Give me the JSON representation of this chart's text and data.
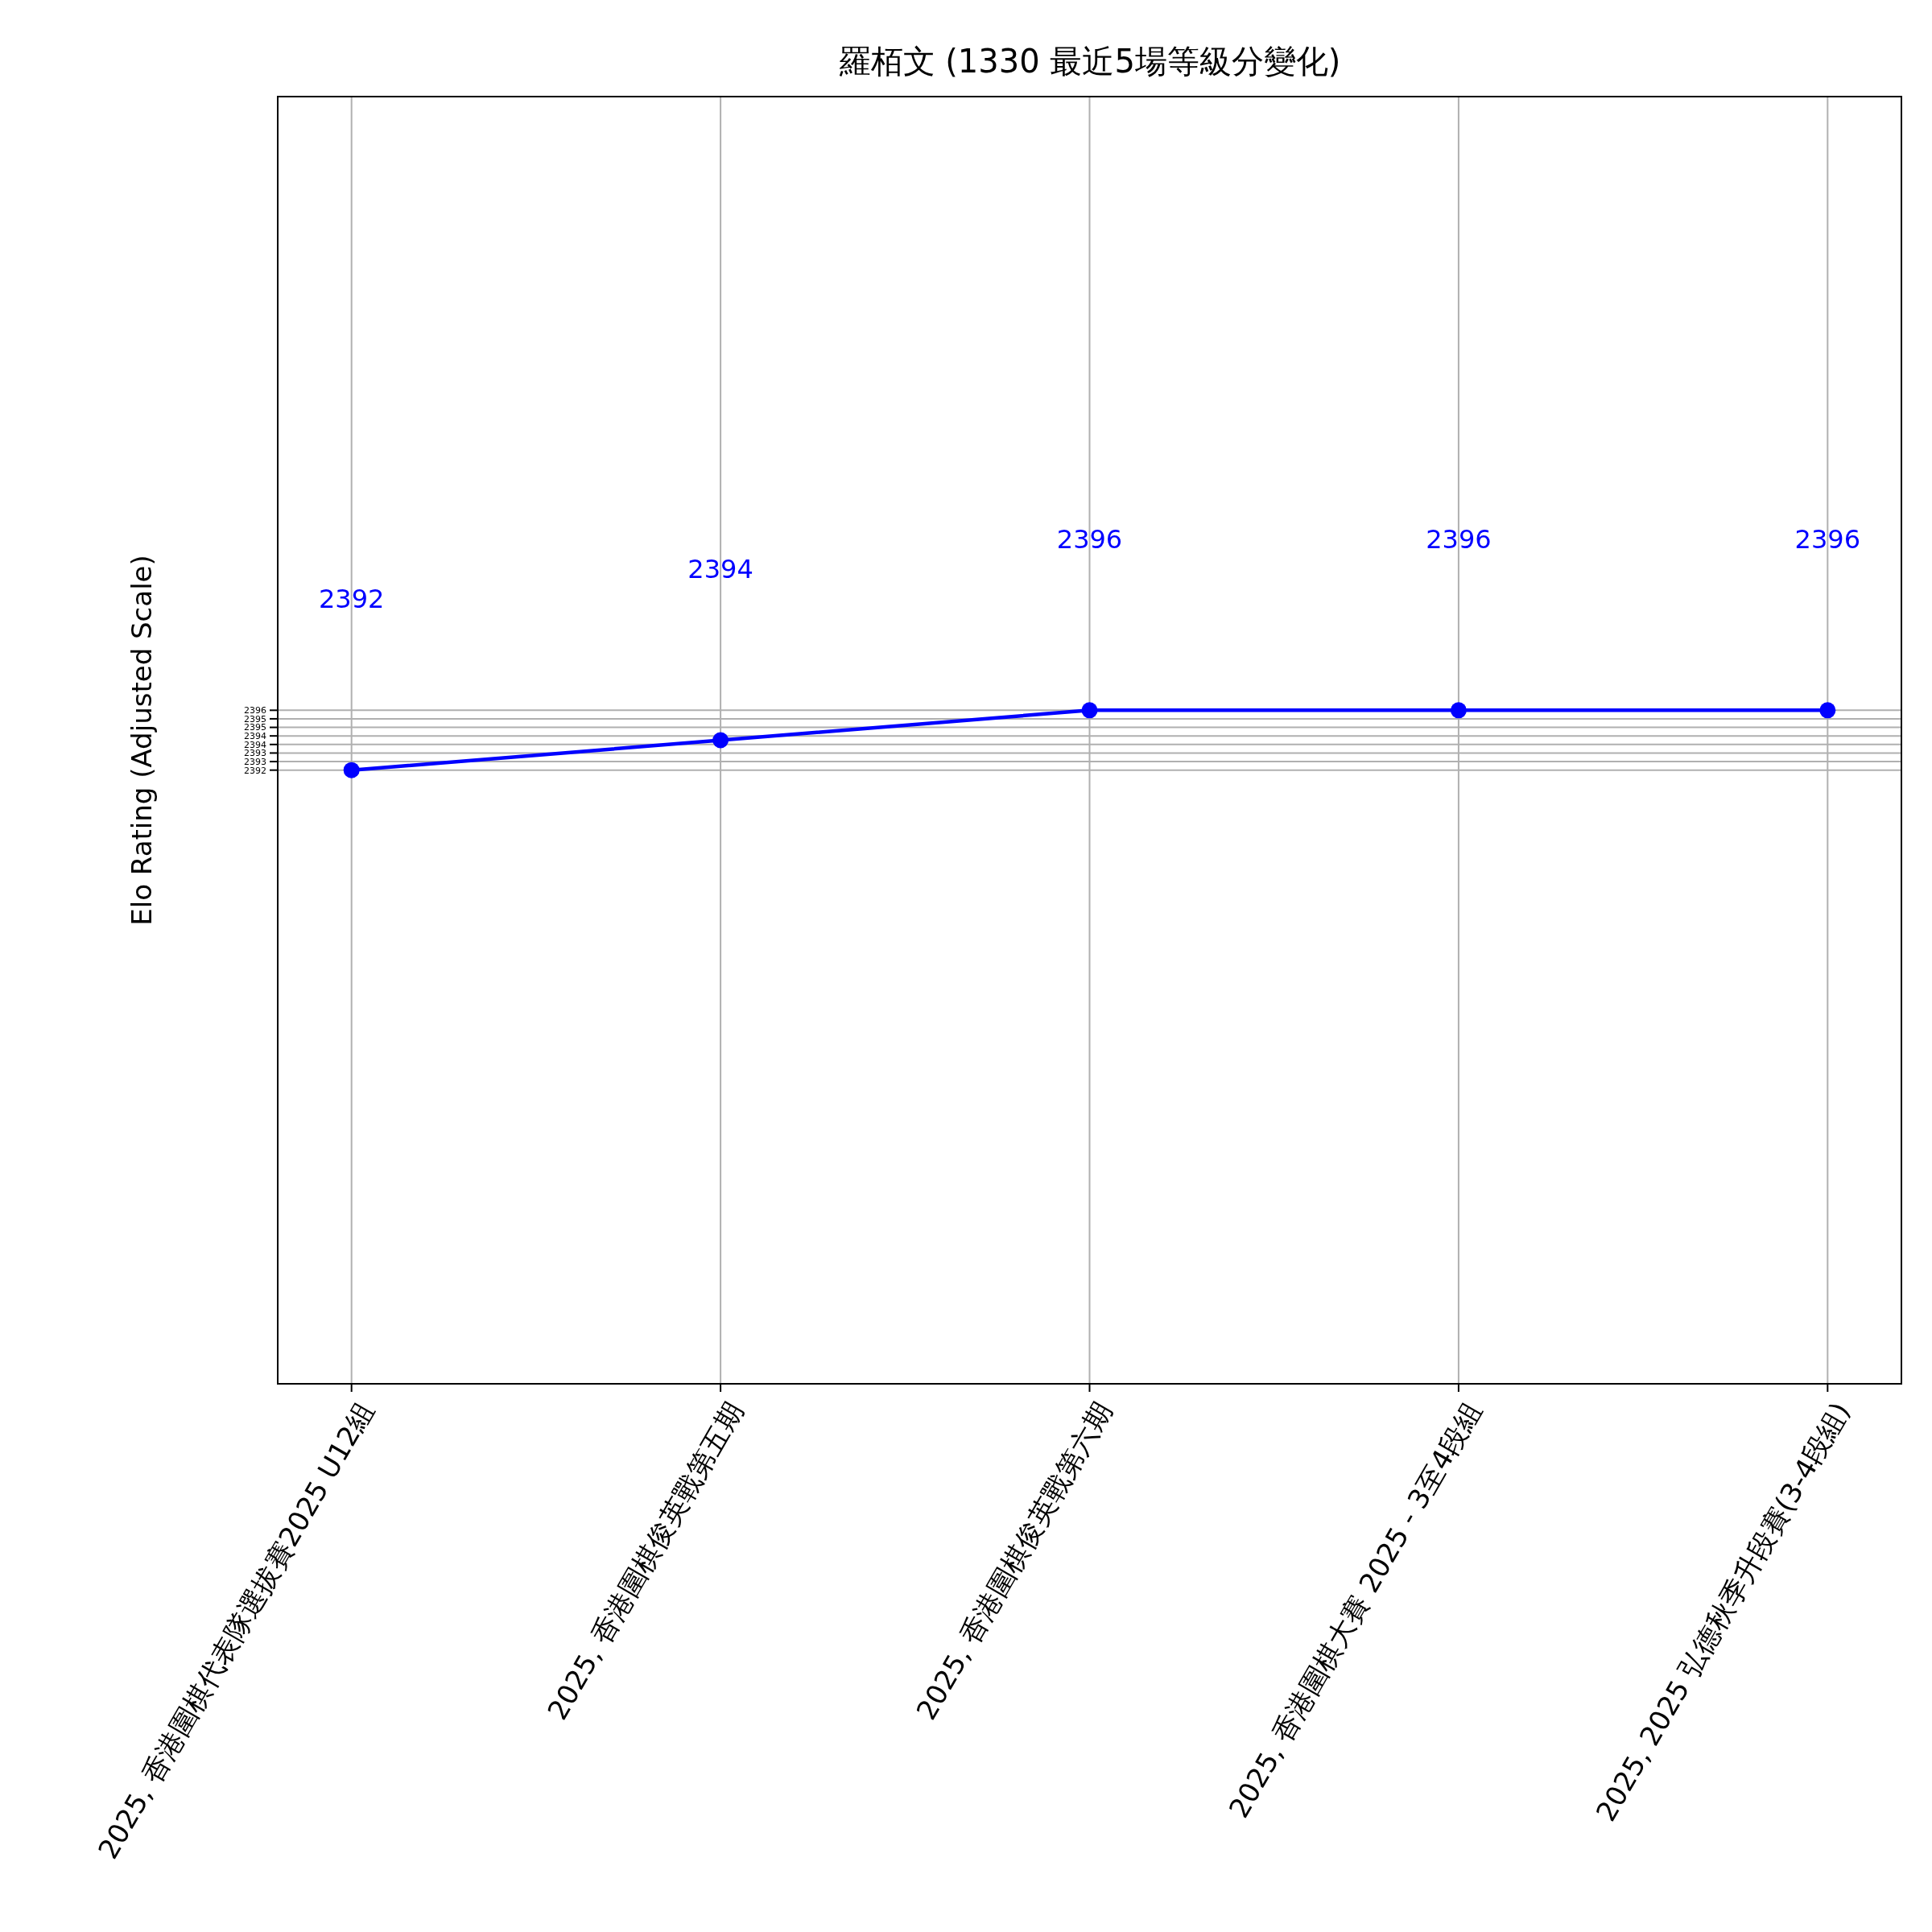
{
  "chart_data": {
    "type": "line",
    "title": "羅栢文 (1330 最近5場等級分變化)",
    "ylabel": "Elo Rating (Adjusted Scale)",
    "categories": [
      "2025, 香港圍棋代表隊選拔賽2025 U12組",
      "2025, 香港圍棋俊英戰第五期",
      "2025, 香港圍棋俊英戰第六期",
      "2025, 香港圍棋大賽 2025 - 3至4段組",
      "2025, 2025 弘德秋季升段賽(3-4段組)"
    ],
    "series": [
      {
        "color": "#0000ff",
        "values": [
          2392,
          2394,
          2396,
          2396,
          2396
        ]
      }
    ],
    "ylim": [
      2351,
      2437
    ],
    "yticks": [
      2392,
      {
        "value": 2392.571,
        "label": "2393"
      },
      {
        "value": 2393.143,
        "label": "2393"
      },
      {
        "value": 2393.714,
        "label": "2394"
      },
      {
        "value": 2394.286,
        "label": "2394"
      },
      {
        "value": 2394.857,
        "label": "2395"
      },
      {
        "value": 2395.429,
        "label": "2395"
      },
      2396
    ],
    "annotations": [
      "2392",
      "2394",
      "2396",
      "2396",
      "2396"
    ],
    "grid": true,
    "marker": "circle",
    "line_style": "solid"
  }
}
